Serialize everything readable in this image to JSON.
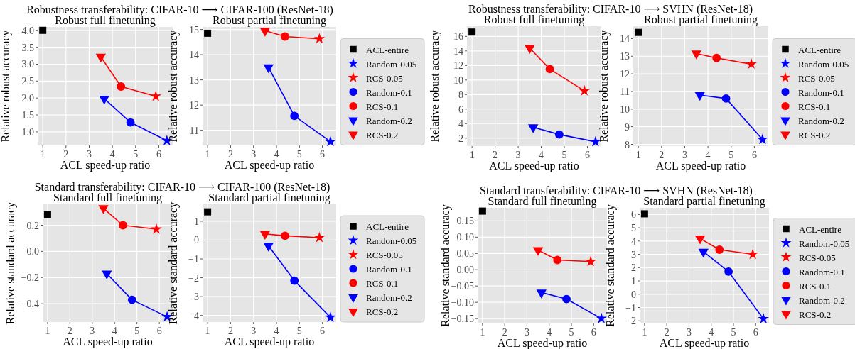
{
  "chart_data": [
    {
      "type": "scatter",
      "title": "Robustness transferability: CIFAR-10 ⟶ CIFAR-100 (ResNet-18)",
      "subtitle": "Robust full finetuning",
      "xlabel": "ACL speed-up ratio",
      "ylabel": "Relative robust accuracy",
      "xlim": [
        0.78,
        6.6
      ],
      "xticks": [
        1,
        2,
        3,
        4,
        5,
        6
      ],
      "ylim": [
        0.6,
        4.1
      ],
      "yticks": [
        {
          "value": 1,
          "label": "1.0"
        },
        {
          "value": 1.5,
          "label": "1.5"
        },
        {
          "value": 2,
          "label": "2.0"
        },
        {
          "value": 2.5,
          "label": "2.5"
        },
        {
          "value": 3,
          "label": "3.0"
        },
        {
          "value": 3.5,
          "label": "3.5"
        },
        {
          "value": 4,
          "label": "4.0"
        }
      ],
      "grid": true,
      "series": [
        {
          "type": "line",
          "color": "#0000ff",
          "x": [
            3.65,
            4.78,
            6.35
          ],
          "values": [
            1.98,
            1.28,
            0.74
          ]
        },
        {
          "type": "line",
          "color": "#ff0000",
          "x": [
            3.5,
            4.37,
            5.87
          ],
          "values": [
            3.22,
            2.34,
            2.05
          ]
        },
        {
          "color": "#000000",
          "marker": "square",
          "x": [
            1
          ],
          "values": [
            4.0
          ]
        },
        {
          "color": "#0000ff",
          "marker": "star",
          "x": [
            6.35
          ],
          "values": [
            0.74
          ]
        },
        {
          "color": "#ff0000",
          "marker": "star",
          "x": [
            5.87
          ],
          "values": [
            2.05
          ]
        },
        {
          "color": "#0000ff",
          "marker": "circle",
          "x": [
            4.78
          ],
          "values": [
            1.28
          ]
        },
        {
          "color": "#ff0000",
          "marker": "circle",
          "x": [
            4.37
          ],
          "values": [
            2.34
          ]
        },
        {
          "color": "#0000ff",
          "marker": "triangle",
          "x": [
            3.65
          ],
          "values": [
            1.98
          ]
        },
        {
          "color": "#ff0000",
          "marker": "triangle",
          "x": [
            3.5
          ],
          "values": [
            3.22
          ]
        }
      ]
    },
    {
      "type": "scatter",
      "subtitle": "Robust partial finetuning",
      "xlabel": "ACL speed-up ratio",
      "ylabel": "Relative robust accuracy",
      "xlim": [
        0.78,
        6.6
      ],
      "xticks": [
        1,
        2,
        3,
        4,
        5,
        6
      ],
      "ylim": [
        10.4,
        15.1
      ],
      "yticks": [
        11,
        12,
        13,
        14,
        15
      ],
      "grid": true,
      "legend": "right",
      "series": [
        {
          "type": "line",
          "color": "#0000ff",
          "x": [
            3.65,
            4.78,
            6.35
          ],
          "values": [
            13.5,
            11.57,
            10.55
          ]
        },
        {
          "type": "line",
          "color": "#ff0000",
          "x": [
            3.5,
            4.37,
            5.87
          ],
          "values": [
            14.95,
            14.72,
            14.63
          ]
        },
        {
          "name": "ACL-entire",
          "color": "#000000",
          "marker": "square",
          "x": [
            1
          ],
          "values": [
            14.85
          ]
        },
        {
          "name": "Random-0.05",
          "color": "#0000ff",
          "marker": "star",
          "x": [
            6.35
          ],
          "values": [
            10.55
          ]
        },
        {
          "name": "RCS-0.05",
          "color": "#ff0000",
          "marker": "star",
          "x": [
            5.87
          ],
          "values": [
            14.63
          ]
        },
        {
          "name": "Random-0.1",
          "color": "#0000ff",
          "marker": "circle",
          "x": [
            4.78
          ],
          "values": [
            11.57
          ]
        },
        {
          "name": "RCS-0.1",
          "color": "#ff0000",
          "marker": "circle",
          "x": [
            4.37
          ],
          "values": [
            14.72
          ]
        },
        {
          "name": "Random-0.2",
          "color": "#0000ff",
          "marker": "triangle",
          "x": [
            3.65
          ],
          "values": [
            13.5
          ]
        },
        {
          "name": "RCS-0.2",
          "color": "#ff0000",
          "marker": "triangle",
          "x": [
            3.5
          ],
          "values": [
            14.95
          ]
        }
      ]
    },
    {
      "type": "scatter",
      "title": "Robustness transferability: CIFAR-10 ⟶ SVHN (ResNet-18)",
      "subtitle": "Robust full finetuning",
      "xlabel": "ACL speed-up ratio",
      "ylabel": "Relative robust accuracy",
      "xlim": [
        0.78,
        6.6
      ],
      "xticks": [
        1,
        2,
        3,
        4,
        5,
        6
      ],
      "ylim": [
        0.9,
        17.4
      ],
      "yticks": [
        2,
        4,
        6,
        8,
        10,
        12,
        14,
        16
      ],
      "grid": true,
      "series": [
        {
          "type": "line",
          "color": "#0000ff",
          "x": [
            3.65,
            4.78,
            6.35
          ],
          "values": [
            3.5,
            2.5,
            1.5
          ]
        },
        {
          "type": "line",
          "color": "#ff0000",
          "x": [
            3.5,
            4.37,
            5.87
          ],
          "values": [
            14.4,
            11.5,
            8.5
          ]
        },
        {
          "color": "#000000",
          "marker": "square",
          "x": [
            1
          ],
          "values": [
            16.6
          ]
        },
        {
          "color": "#0000ff",
          "marker": "star",
          "x": [
            6.35
          ],
          "values": [
            1.5
          ]
        },
        {
          "color": "#ff0000",
          "marker": "star",
          "x": [
            5.87
          ],
          "values": [
            8.5
          ]
        },
        {
          "color": "#0000ff",
          "marker": "circle",
          "x": [
            4.78
          ],
          "values": [
            2.5
          ]
        },
        {
          "color": "#ff0000",
          "marker": "circle",
          "x": [
            4.37
          ],
          "values": [
            11.5
          ]
        },
        {
          "color": "#0000ff",
          "marker": "triangle",
          "x": [
            3.65
          ],
          "values": [
            3.5
          ]
        },
        {
          "color": "#ff0000",
          "marker": "triangle",
          "x": [
            3.5
          ],
          "values": [
            14.4
          ]
        }
      ]
    },
    {
      "type": "scatter",
      "subtitle": "Robust partial finetuning",
      "xlabel": "ACL speed-up ratio",
      "ylabel": "Relative robust accuracy",
      "xlim": [
        0.78,
        6.6
      ],
      "xticks": [
        1,
        2,
        3,
        4,
        5,
        6
      ],
      "ylim": [
        7.9,
        14.7
      ],
      "yticks": [
        8,
        9,
        10,
        11,
        12,
        13,
        14
      ],
      "grid": true,
      "legend": "right",
      "series": [
        {
          "type": "line",
          "color": "#0000ff",
          "x": [
            3.65,
            4.78,
            6.35
          ],
          "values": [
            10.8,
            10.6,
            8.28
          ]
        },
        {
          "type": "line",
          "color": "#ff0000",
          "x": [
            3.5,
            4.37,
            5.87
          ],
          "values": [
            13.15,
            12.9,
            12.55
          ]
        },
        {
          "name": "ACL-entire",
          "color": "#000000",
          "marker": "square",
          "x": [
            1
          ],
          "values": [
            14.35
          ]
        },
        {
          "name": "Random-0.05",
          "color": "#0000ff",
          "marker": "star",
          "x": [
            6.35
          ],
          "values": [
            8.28
          ]
        },
        {
          "name": "RCS-0.05",
          "color": "#ff0000",
          "marker": "star",
          "x": [
            5.87
          ],
          "values": [
            12.55
          ]
        },
        {
          "name": "Random-0.1",
          "color": "#0000ff",
          "marker": "circle",
          "x": [
            4.78
          ],
          "values": [
            10.6
          ]
        },
        {
          "name": "RCS-0.1",
          "color": "#ff0000",
          "marker": "circle",
          "x": [
            4.37
          ],
          "values": [
            12.9
          ]
        },
        {
          "name": "Random-0.2",
          "color": "#0000ff",
          "marker": "triangle",
          "x": [
            3.65
          ],
          "values": [
            10.8
          ]
        },
        {
          "name": "RCS-0.2",
          "color": "#ff0000",
          "marker": "triangle",
          "x": [
            3.5
          ],
          "values": [
            13.15
          ]
        }
      ]
    },
    {
      "type": "scatter",
      "title": "Standard transferability: CIFAR-10 ⟶ CIFAR-100 (ResNet-18)",
      "subtitle": "Standard full finetuning",
      "xlabel": "ACL speed-up ratio",
      "ylabel": "Relative standard accuracy",
      "xlim": [
        0.78,
        6.6
      ],
      "xticks": [
        1,
        2,
        3,
        4,
        5,
        6
      ],
      "ylim": [
        -0.54,
        0.36
      ],
      "yticks": [
        {
          "value": -0.4,
          "label": "−0.4"
        },
        {
          "value": -0.2,
          "label": "−0.2"
        },
        {
          "value": 0,
          "label": "0.0"
        },
        {
          "value": 0.2,
          "label": "0.2"
        }
      ],
      "grid": true,
      "series": [
        {
          "type": "line",
          "color": "#0000ff",
          "x": [
            3.65,
            4.78,
            6.35
          ],
          "values": [
            -0.17,
            -0.37,
            -0.5
          ]
        },
        {
          "type": "line",
          "color": "#ff0000",
          "x": [
            3.5,
            4.37,
            5.87
          ],
          "values": [
            0.33,
            0.2,
            0.17
          ]
        },
        {
          "color": "#000000",
          "marker": "square",
          "x": [
            1
          ],
          "values": [
            0.28
          ]
        },
        {
          "color": "#0000ff",
          "marker": "star",
          "x": [
            6.35
          ],
          "values": [
            -0.5
          ]
        },
        {
          "color": "#ff0000",
          "marker": "star",
          "x": [
            5.87
          ],
          "values": [
            0.17
          ]
        },
        {
          "color": "#0000ff",
          "marker": "circle",
          "x": [
            4.78
          ],
          "values": [
            -0.37
          ]
        },
        {
          "color": "#ff0000",
          "marker": "circle",
          "x": [
            4.37
          ],
          "values": [
            0.2
          ]
        },
        {
          "color": "#0000ff",
          "marker": "triangle",
          "x": [
            3.65
          ],
          "values": [
            -0.17
          ]
        },
        {
          "color": "#ff0000",
          "marker": "triangle",
          "x": [
            3.5
          ],
          "values": [
            0.33
          ]
        }
      ]
    },
    {
      "type": "scatter",
      "subtitle": "Standard partial finetuning",
      "xlabel": "ACL speed-up ratio",
      "ylabel": "Relative standard accuracy",
      "xlim": [
        0.78,
        6.6
      ],
      "xticks": [
        1,
        2,
        3,
        4,
        5,
        6
      ],
      "ylim": [
        -4.35,
        1.9
      ],
      "yticks": [
        {
          "value": -4,
          "label": "−4"
        },
        {
          "value": -3,
          "label": "−3"
        },
        {
          "value": -2,
          "label": "−2"
        },
        {
          "value": -1,
          "label": "−1"
        },
        0,
        1
      ],
      "grid": true,
      "legend": "right",
      "series": [
        {
          "type": "line",
          "color": "#0000ff",
          "x": [
            3.65,
            4.78,
            6.35
          ],
          "values": [
            -0.3,
            -2.15,
            -4.1
          ]
        },
        {
          "type": "line",
          "color": "#ff0000",
          "x": [
            3.5,
            4.37,
            5.87
          ],
          "values": [
            0.33,
            0.23,
            0.13
          ]
        },
        {
          "name": "ACL-entire",
          "color": "#000000",
          "marker": "square",
          "x": [
            1
          ],
          "values": [
            1.5
          ]
        },
        {
          "name": "Random-0.05",
          "color": "#0000ff",
          "marker": "star",
          "x": [
            6.35
          ],
          "values": [
            -4.1
          ]
        },
        {
          "name": "RCS-0.05",
          "color": "#ff0000",
          "marker": "star",
          "x": [
            5.87
          ],
          "values": [
            0.13
          ]
        },
        {
          "name": "Random-0.1",
          "color": "#0000ff",
          "marker": "circle",
          "x": [
            4.78
          ],
          "values": [
            -2.15
          ]
        },
        {
          "name": "RCS-0.1",
          "color": "#ff0000",
          "marker": "circle",
          "x": [
            4.37
          ],
          "values": [
            0.23
          ]
        },
        {
          "name": "Random-0.2",
          "color": "#0000ff",
          "marker": "triangle",
          "x": [
            3.65
          ],
          "values": [
            -0.3
          ]
        },
        {
          "name": "RCS-0.2",
          "color": "#ff0000",
          "marker": "triangle",
          "x": [
            3.5
          ],
          "values": [
            0.33
          ]
        }
      ]
    },
    {
      "type": "scatter",
      "title": "Standard transferability: CIFAR-10 ⟶ SVHN (ResNet-18)",
      "subtitle": "Standard full finetuning",
      "xlabel": "ACL speed-up ratio",
      "ylabel": "Relative standard accuracy",
      "xlim": [
        0.78,
        6.6
      ],
      "xticks": [
        1,
        2,
        3,
        4,
        5,
        6
      ],
      "ylim": [
        -0.165,
        0.19
      ],
      "yticks": [
        {
          "value": -0.15,
          "label": "−0.15"
        },
        {
          "value": -0.1,
          "label": "−0.10"
        },
        {
          "value": -0.05,
          "label": "−0.05"
        },
        {
          "value": 0,
          "label": "0.00"
        },
        {
          "value": 0.05,
          "label": "0.05"
        },
        {
          "value": 0.1,
          "label": "0.10"
        },
        {
          "value": 0.15,
          "label": "0.15"
        }
      ],
      "grid": true,
      "series": [
        {
          "type": "line",
          "color": "#0000ff",
          "x": [
            3.65,
            4.78,
            6.35
          ],
          "values": [
            -0.07,
            -0.09,
            -0.15
          ]
        },
        {
          "type": "line",
          "color": "#ff0000",
          "x": [
            3.5,
            4.37,
            5.87
          ],
          "values": [
            0.06,
            0.03,
            0.025
          ]
        },
        {
          "color": "#000000",
          "marker": "square",
          "x": [
            1
          ],
          "values": [
            0.18
          ]
        },
        {
          "color": "#0000ff",
          "marker": "star",
          "x": [
            6.35
          ],
          "values": [
            -0.15
          ]
        },
        {
          "color": "#ff0000",
          "marker": "star",
          "x": [
            5.87
          ],
          "values": [
            0.025
          ]
        },
        {
          "color": "#0000ff",
          "marker": "circle",
          "x": [
            4.78
          ],
          "values": [
            -0.09
          ]
        },
        {
          "color": "#ff0000",
          "marker": "circle",
          "x": [
            4.37
          ],
          "values": [
            0.03
          ]
        },
        {
          "color": "#0000ff",
          "marker": "triangle",
          "x": [
            3.65
          ],
          "values": [
            -0.07
          ]
        },
        {
          "color": "#ff0000",
          "marker": "triangle",
          "x": [
            3.5
          ],
          "values": [
            0.06
          ]
        }
      ]
    },
    {
      "type": "scatter",
      "subtitle": "Standard partial finetuning",
      "xlabel": "ACL speed-up ratio",
      "ylabel": "Relative standard accuracy",
      "xlim": [
        0.78,
        6.6
      ],
      "xticks": [
        1,
        2,
        3,
        4,
        5,
        6
      ],
      "ylim": [
        -2.2,
        6.5
      ],
      "yticks": [
        {
          "value": -2,
          "label": "−2"
        },
        {
          "value": -1,
          "label": "−1"
        },
        0,
        1,
        2,
        3,
        4,
        5,
        6
      ],
      "grid": true,
      "legend": "right",
      "series": [
        {
          "type": "line",
          "color": "#0000ff",
          "x": [
            3.65,
            4.78,
            6.35
          ],
          "values": [
            3.2,
            1.7,
            -1.85
          ]
        },
        {
          "type": "line",
          "color": "#ff0000",
          "x": [
            3.5,
            4.37,
            5.87
          ],
          "values": [
            4.2,
            3.35,
            3.0
          ]
        },
        {
          "name": "ACL-entire",
          "color": "#000000",
          "marker": "square",
          "x": [
            1
          ],
          "values": [
            6.05
          ]
        },
        {
          "name": "Random-0.05",
          "color": "#0000ff",
          "marker": "star",
          "x": [
            6.35
          ],
          "values": [
            -1.85
          ]
        },
        {
          "name": "RCS-0.05",
          "color": "#ff0000",
          "marker": "star",
          "x": [
            5.87
          ],
          "values": [
            3.0
          ]
        },
        {
          "name": "Random-0.1",
          "color": "#0000ff",
          "marker": "circle",
          "x": [
            4.78
          ],
          "values": [
            1.7
          ]
        },
        {
          "name": "RCS-0.1",
          "color": "#ff0000",
          "marker": "circle",
          "x": [
            4.37
          ],
          "values": [
            3.35
          ]
        },
        {
          "name": "Random-0.2",
          "color": "#0000ff",
          "marker": "triangle",
          "x": [
            3.65
          ],
          "values": [
            3.2
          ]
        },
        {
          "name": "RCS-0.2",
          "color": "#ff0000",
          "marker": "triangle",
          "x": [
            3.5
          ],
          "values": [
            4.2
          ]
        }
      ]
    }
  ]
}
